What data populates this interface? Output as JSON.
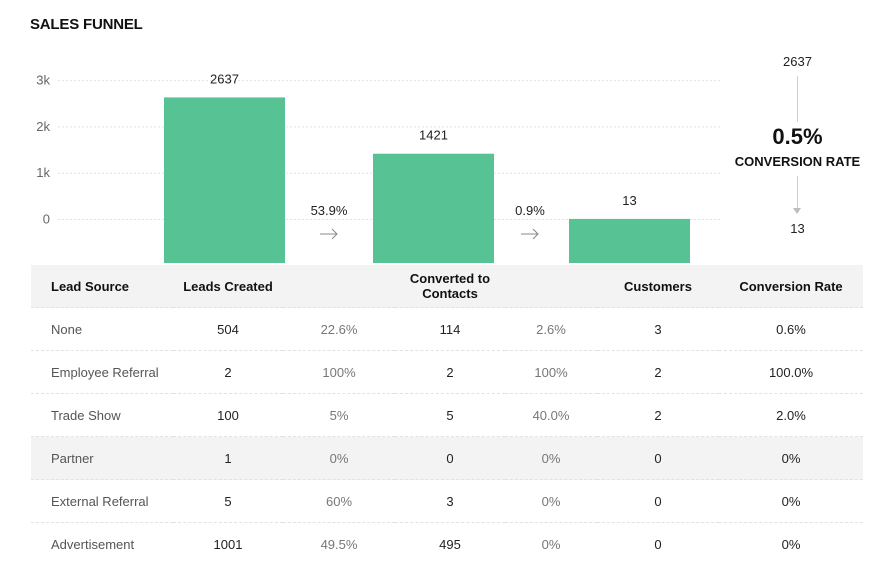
{
  "title": "SALES FUNNEL",
  "chart_data": {
    "type": "bar",
    "title": "SALES FUNNEL",
    "categories": [
      "Leads Created",
      "Converted to Contacts",
      "Customers"
    ],
    "values": [
      2637,
      1421,
      13
    ],
    "ylim": [
      -1000,
      3000
    ],
    "yticks": [
      0,
      1000,
      2000,
      3000
    ],
    "ytick_labels": [
      "0",
      "1k",
      "2k",
      "3k"
    ],
    "step_rates": [
      "53.9%",
      "0.9%"
    ],
    "bar_color": "#57c395",
    "grid": true
  },
  "summary": {
    "top_value": "2637",
    "rate": "0.5%",
    "label": "CONVERSION RATE",
    "bottom_value": "13"
  },
  "table": {
    "headers": [
      "Lead Source",
      "Leads Created",
      "",
      "Converted to Contacts",
      "",
      "Customers",
      "Conversion Rate"
    ],
    "rows": [
      [
        "None",
        "504",
        "22.6%",
        "114",
        "2.6%",
        "3",
        "0.6%"
      ],
      [
        "Employee Referral",
        "2",
        "100%",
        "2",
        "100%",
        "2",
        "100.0%"
      ],
      [
        "Trade Show",
        "100",
        "5%",
        "5",
        "40.0%",
        "2",
        "2.0%"
      ],
      [
        "Partner",
        "1",
        "0%",
        "0",
        "0%",
        "0",
        "0%"
      ],
      [
        "External Referral",
        "5",
        "60%",
        "3",
        "0%",
        "0",
        "0%"
      ],
      [
        "Advertisement",
        "1001",
        "49.5%",
        "495",
        "0%",
        "0",
        "0%"
      ]
    ],
    "shaded_rows": [
      3
    ]
  }
}
